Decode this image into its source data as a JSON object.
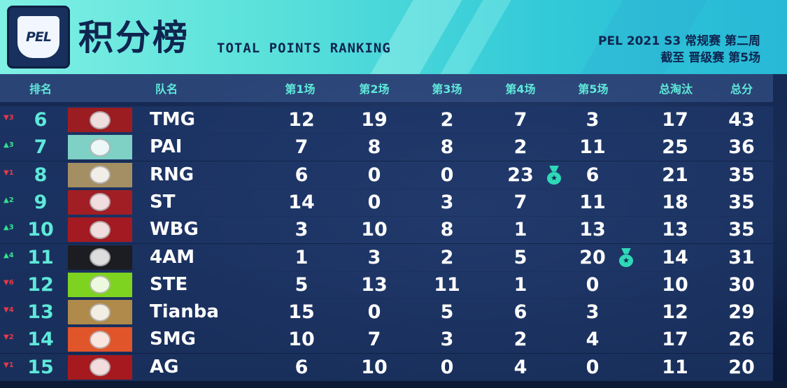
{
  "header": {
    "logo_text": "PEL",
    "title_cn": "积分榜",
    "title_en": "TOTAL POINTS RANKING",
    "subtitle_line1": "PEL 2021 S3 常规赛 第二周",
    "subtitle_line2": "截至 晋级赛 第5场"
  },
  "columns": {
    "rank": "排名",
    "team": "队名",
    "m1": "第1场",
    "m2": "第2场",
    "m3": "第3场",
    "m4": "第4场",
    "m5": "第5场",
    "elims": "总淘汰",
    "total": "总分"
  },
  "colors": {
    "accent": "#5ee9d9",
    "up": "#35e08f",
    "down": "#e5394a"
  },
  "rows": [
    {
      "move": "▼3",
      "dir": "down",
      "rank": "6",
      "team": "TMG",
      "logo_color": "#9b1d22",
      "m1": "12",
      "m2": "19",
      "m3": "2",
      "m4": "7",
      "m5": "3",
      "elims": "17",
      "total": "43"
    },
    {
      "move": "▲3",
      "dir": "up",
      "rank": "7",
      "team": "PAI",
      "logo_color": "#7fd0c5",
      "m1": "7",
      "m2": "8",
      "m3": "8",
      "m4": "2",
      "m5": "11",
      "elims": "25",
      "total": "36"
    },
    {
      "move": "▼1",
      "dir": "down",
      "rank": "8",
      "team": "RNG",
      "logo_color": "#a48e63",
      "m1": "6",
      "m2": "0",
      "m3": "0",
      "m4": "23",
      "m5": "6",
      "elims": "21",
      "total": "35",
      "medal_on": "m4"
    },
    {
      "move": "▲2",
      "dir": "up",
      "rank": "9",
      "team": "ST",
      "logo_color": "#a11e25",
      "m1": "14",
      "m2": "0",
      "m3": "3",
      "m4": "7",
      "m5": "11",
      "elims": "18",
      "total": "35"
    },
    {
      "move": "▲3",
      "dir": "up",
      "rank": "10",
      "team": "WBG",
      "logo_color": "#a31a22",
      "m1": "3",
      "m2": "10",
      "m3": "8",
      "m4": "1",
      "m5": "13",
      "elims": "13",
      "total": "35"
    },
    {
      "move": "▲4",
      "dir": "up",
      "rank": "11",
      "team": "4AM",
      "logo_color": "#1c1d22",
      "m1": "1",
      "m2": "3",
      "m3": "2",
      "m4": "5",
      "m5": "20",
      "elims": "14",
      "total": "31",
      "medal_on": "m5"
    },
    {
      "move": "▼6",
      "dir": "down",
      "rank": "12",
      "team": "STE",
      "logo_color": "#7ed321",
      "m1": "5",
      "m2": "13",
      "m3": "11",
      "m4": "1",
      "m5": "0",
      "elims": "10",
      "total": "30"
    },
    {
      "move": "▼4",
      "dir": "down",
      "rank": "13",
      "team": "Tianba",
      "logo_color": "#b08a4a",
      "m1": "15",
      "m2": "0",
      "m3": "5",
      "m4": "6",
      "m5": "3",
      "elims": "12",
      "total": "29"
    },
    {
      "move": "▼2",
      "dir": "down",
      "rank": "14",
      "team": "SMG",
      "logo_color": "#e0552a",
      "m1": "10",
      "m2": "7",
      "m3": "3",
      "m4": "2",
      "m5": "4",
      "elims": "17",
      "total": "26"
    },
    {
      "move": "▼1",
      "dir": "down",
      "rank": "15",
      "team": "AG",
      "logo_color": "#a6191f",
      "m1": "6",
      "m2": "10",
      "m3": "0",
      "m4": "4",
      "m5": "0",
      "elims": "11",
      "total": "20"
    }
  ]
}
